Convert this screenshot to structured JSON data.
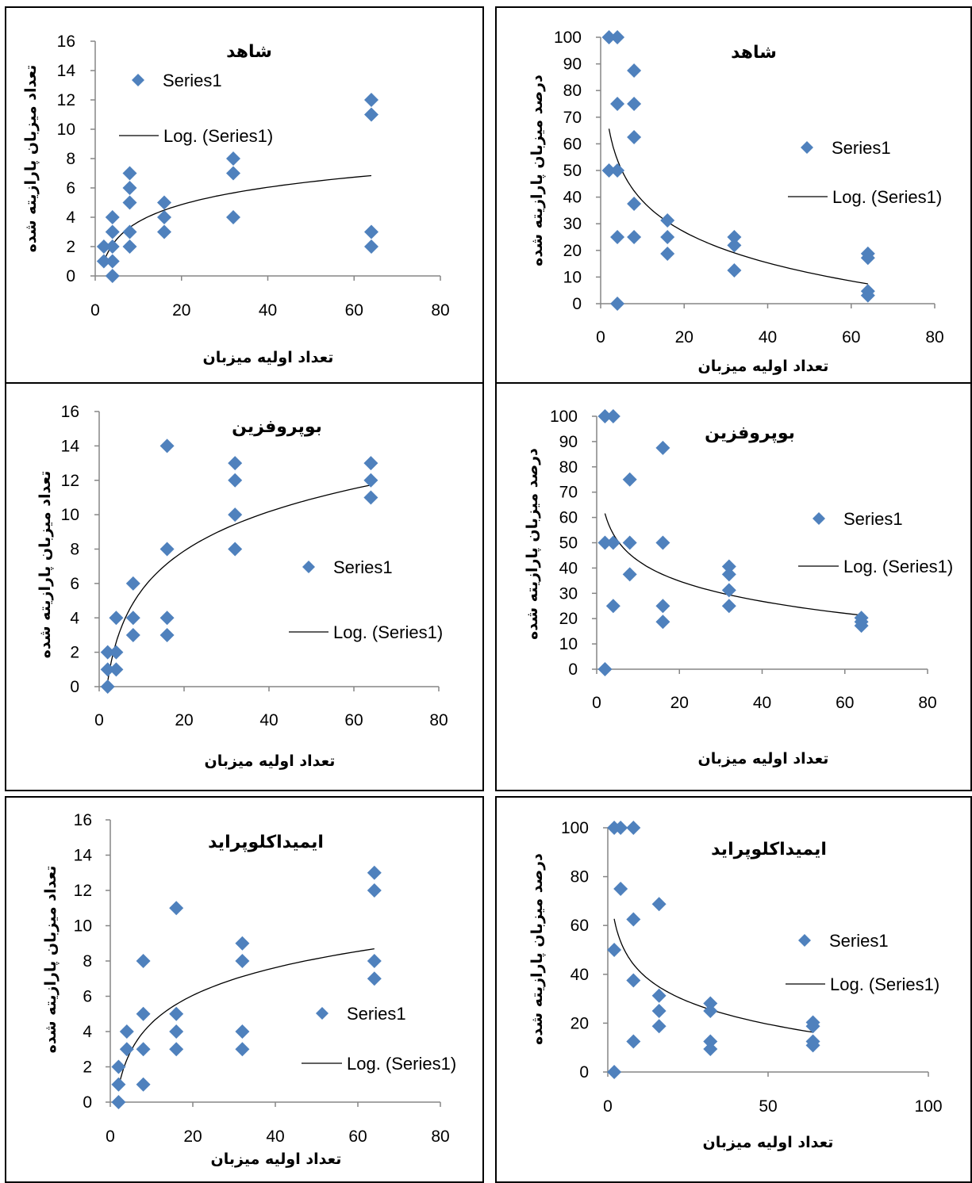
{
  "colors": {
    "marker": "#4F81BD",
    "trend": "#000000",
    "axis": "#868686",
    "border": "#000000"
  },
  "chart_data": [
    {
      "type": "scatter",
      "title": "شاهد",
      "xlabel": "تعداد اولیه میزبان",
      "ylabel": "تعداد میزبان پارازیته شده",
      "xlim": [
        0,
        80
      ],
      "ylim": [
        0,
        16
      ],
      "xticks": [
        0,
        20,
        40,
        60,
        80
      ],
      "yticks": [
        0,
        2,
        4,
        6,
        8,
        10,
        12,
        14,
        16
      ],
      "legend_position": "upper-left",
      "series": [
        {
          "name": "Series1",
          "points": [
            [
              2,
              1
            ],
            [
              2,
              2
            ],
            [
              4,
              0
            ],
            [
              4,
              1
            ],
            [
              4,
              2
            ],
            [
              4,
              3
            ],
            [
              4,
              4
            ],
            [
              8,
              2
            ],
            [
              8,
              3
            ],
            [
              8,
              5
            ],
            [
              8,
              6
            ],
            [
              8,
              7
            ],
            [
              16,
              3
            ],
            [
              16,
              4
            ],
            [
              16,
              5
            ],
            [
              32,
              4
            ],
            [
              32,
              7
            ],
            [
              32,
              8
            ],
            [
              64,
              2
            ],
            [
              64,
              3
            ],
            [
              64,
              11
            ],
            [
              64,
              12
            ]
          ]
        }
      ],
      "trendline": {
        "name": "Log. (Series1)",
        "type": "logarithmic",
        "x_range": [
          2,
          64
        ],
        "a": 1.7,
        "b": -0.23
      }
    },
    {
      "type": "scatter",
      "title": "شاهد",
      "xlabel": "تعداد اولیه میزبان",
      "ylabel": "درصد میزبان پارازیته شده",
      "xlim": [
        0,
        80
      ],
      "ylim": [
        0,
        100
      ],
      "xticks": [
        0,
        20,
        40,
        60,
        80
      ],
      "yticks": [
        0,
        10,
        20,
        30,
        40,
        50,
        60,
        70,
        80,
        90,
        100
      ],
      "legend_position": "right",
      "series": [
        {
          "name": "Series1",
          "points": [
            [
              2,
              50
            ],
            [
              2,
              100
            ],
            [
              4,
              0
            ],
            [
              4,
              25
            ],
            [
              4,
              50
            ],
            [
              4,
              75
            ],
            [
              4,
              100
            ],
            [
              8,
              25
            ],
            [
              8,
              37.5
            ],
            [
              8,
              62.5
            ],
            [
              8,
              75
            ],
            [
              8,
              87.5
            ],
            [
              16,
              18.75
            ],
            [
              16,
              25
            ],
            [
              16,
              31.25
            ],
            [
              32,
              12.5
            ],
            [
              32,
              21.9
            ],
            [
              32,
              25
            ],
            [
              64,
              3.1
            ],
            [
              64,
              4.7
            ],
            [
              64,
              17.2
            ],
            [
              64,
              18.8
            ]
          ]
        }
      ],
      "trendline": {
        "name": "Log. (Series1)",
        "type": "logarithmic",
        "x_range": [
          2,
          64
        ],
        "a": -16.8,
        "b": 77.3
      }
    },
    {
      "type": "scatter",
      "title": "بوپروفزین",
      "xlabel": "تعداد اولیه میزبان",
      "ylabel": "تعداد میزبان پارازیته شده",
      "xlim": [
        0,
        80
      ],
      "ylim": [
        0,
        16
      ],
      "xticks": [
        0,
        20,
        40,
        60,
        80
      ],
      "yticks": [
        0,
        2,
        4,
        6,
        8,
        10,
        12,
        14,
        16
      ],
      "legend_position": "right",
      "series": [
        {
          "name": "Series1",
          "points": [
            [
              2,
              0
            ],
            [
              2,
              1
            ],
            [
              2,
              2
            ],
            [
              4,
              1
            ],
            [
              4,
              2
            ],
            [
              4,
              4
            ],
            [
              8,
              3
            ],
            [
              8,
              4
            ],
            [
              8,
              6
            ],
            [
              16,
              3
            ],
            [
              16,
              4
            ],
            [
              16,
              8
            ],
            [
              16,
              14
            ],
            [
              32,
              8
            ],
            [
              32,
              10
            ],
            [
              32,
              12
            ],
            [
              32,
              13
            ],
            [
              64,
              11
            ],
            [
              64,
              12
            ],
            [
              64,
              13
            ]
          ]
        }
      ],
      "trendline": {
        "name": "Log. (Series1)",
        "type": "logarithmic",
        "x_range": [
          2,
          64
        ],
        "a": 3.3,
        "b": -2.0
      }
    },
    {
      "type": "scatter",
      "title": "بوپروفزین",
      "xlabel": "تعداد اولیه میزبان",
      "ylabel": "درصد میزبان پارازیته شده",
      "xlim": [
        0,
        80
      ],
      "ylim": [
        0,
        100
      ],
      "xticks": [
        0,
        20,
        40,
        60,
        80
      ],
      "yticks": [
        0,
        10,
        20,
        30,
        40,
        50,
        60,
        70,
        80,
        90,
        100
      ],
      "legend_position": "right",
      "series": [
        {
          "name": "Series1",
          "points": [
            [
              2,
              0
            ],
            [
              2,
              50
            ],
            [
              2,
              100
            ],
            [
              4,
              25
            ],
            [
              4,
              50
            ],
            [
              4,
              100
            ],
            [
              8,
              37.5
            ],
            [
              8,
              50
            ],
            [
              8,
              75
            ],
            [
              16,
              18.75
            ],
            [
              16,
              25
            ],
            [
              16,
              50
            ],
            [
              16,
              87.5
            ],
            [
              32,
              25
            ],
            [
              32,
              31.25
            ],
            [
              32,
              37.5
            ],
            [
              32,
              40.6
            ],
            [
              64,
              17.2
            ],
            [
              64,
              18.75
            ],
            [
              64,
              20.3
            ]
          ]
        }
      ],
      "trendline": {
        "name": "Log. (Series1)",
        "type": "logarithmic",
        "x_range": [
          2,
          64
        ],
        "a": -11.6,
        "b": 69.6
      }
    },
    {
      "type": "scatter",
      "title": "ایمیداکلوپراید",
      "xlabel": "تعداد اولیه میزبان",
      "ylabel": "تعداد میزبان پارازیته شده",
      "xlim": [
        0,
        80
      ],
      "ylim": [
        0,
        16
      ],
      "xticks": [
        0,
        20,
        40,
        60,
        80
      ],
      "yticks": [
        0,
        2,
        4,
        6,
        8,
        10,
        12,
        14,
        16
      ],
      "legend_position": "right",
      "series": [
        {
          "name": "Series1",
          "points": [
            [
              2,
              0
            ],
            [
              2,
              1
            ],
            [
              2,
              2
            ],
            [
              4,
              3
            ],
            [
              4,
              4
            ],
            [
              8,
              1
            ],
            [
              8,
              3
            ],
            [
              8,
              5
            ],
            [
              8,
              8
            ],
            [
              16,
              3
            ],
            [
              16,
              4
            ],
            [
              16,
              5
            ],
            [
              16,
              11
            ],
            [
              32,
              3
            ],
            [
              32,
              4
            ],
            [
              32,
              8
            ],
            [
              32,
              9
            ],
            [
              64,
              7
            ],
            [
              64,
              8
            ],
            [
              64,
              12
            ],
            [
              64,
              13
            ]
          ]
        }
      ],
      "trendline": {
        "name": "Log. (Series1)",
        "type": "logarithmic",
        "x_range": [
          2,
          64
        ],
        "a": 2.27,
        "b": -0.75
      }
    },
    {
      "type": "scatter",
      "title": "ایمیداکلوپراید",
      "xlabel": "تعداد اولیه میزبان",
      "ylabel": "درصد میزبان پارازیته شده",
      "xlim": [
        0,
        100
      ],
      "ylim": [
        0,
        100
      ],
      "xticks": [
        0,
        50,
        100
      ],
      "yticks": [
        0,
        20,
        40,
        60,
        80,
        100
      ],
      "legend_position": "right",
      "series": [
        {
          "name": "Series1",
          "points": [
            [
              2,
              0
            ],
            [
              2,
              50
            ],
            [
              2,
              100
            ],
            [
              4,
              75
            ],
            [
              4,
              100
            ],
            [
              8,
              12.5
            ],
            [
              8,
              37.5
            ],
            [
              8,
              62.5
            ],
            [
              8,
              100
            ],
            [
              16,
              18.75
            ],
            [
              16,
              25
            ],
            [
              16,
              31.25
            ],
            [
              16,
              68.75
            ],
            [
              32,
              9.4
            ],
            [
              32,
              12.5
            ],
            [
              32,
              25
            ],
            [
              32,
              28.1
            ],
            [
              64,
              10.9
            ],
            [
              64,
              12.5
            ],
            [
              64,
              18.75
            ],
            [
              64,
              20.3
            ]
          ]
        }
      ],
      "trendline": {
        "name": "Log. (Series1)",
        "type": "logarithmic",
        "x_range": [
          2,
          64
        ],
        "a": -13.4,
        "b": 72.0
      }
    }
  ]
}
